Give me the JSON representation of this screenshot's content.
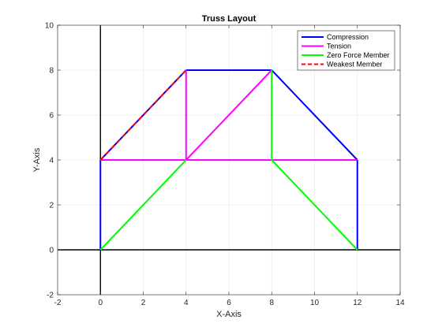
{
  "chart_data": {
    "type": "line",
    "title": "Truss Layout",
    "xlabel": "X-Axis",
    "ylabel": "Y-Axis",
    "xlim": [
      -2,
      14
    ],
    "ylim": [
      -2,
      10
    ],
    "xticks": [
      -2,
      0,
      2,
      4,
      6,
      8,
      10,
      12,
      14
    ],
    "yticks": [
      -2,
      0,
      2,
      4,
      6,
      8,
      10
    ],
    "grid": true,
    "legend_position": "top-right",
    "reference_lines": [
      {
        "orientation": "horizontal",
        "value": 0,
        "color": "#000000"
      },
      {
        "orientation": "vertical",
        "value": 0,
        "color": "#000000"
      }
    ],
    "series": [
      {
        "name": "Compression",
        "color": "#0000ff",
        "style": "solid",
        "segments": [
          [
            [
              0,
              0
            ],
            [
              0,
              4
            ]
          ],
          [
            [
              0,
              4
            ],
            [
              4,
              8
            ]
          ],
          [
            [
              4,
              8
            ],
            [
              8,
              8
            ]
          ],
          [
            [
              8,
              8
            ],
            [
              12,
              4
            ]
          ],
          [
            [
              12,
              4
            ],
            [
              12,
              0
            ]
          ]
        ]
      },
      {
        "name": "Tension",
        "color": "#ff00ff",
        "style": "solid",
        "segments": [
          [
            [
              0,
              4
            ],
            [
              12,
              4
            ]
          ],
          [
            [
              4,
              4
            ],
            [
              4,
              8
            ]
          ],
          [
            [
              4,
              4
            ],
            [
              8,
              8
            ]
          ]
        ]
      },
      {
        "name": "Zero Force Member",
        "color": "#00ff00",
        "style": "solid",
        "segments": [
          [
            [
              0,
              0
            ],
            [
              4,
              4
            ]
          ],
          [
            [
              8,
              4
            ],
            [
              8,
              8
            ]
          ],
          [
            [
              8,
              4
            ],
            [
              12,
              0
            ]
          ]
        ]
      },
      {
        "name": "Weakest Member",
        "color": "#ff0000",
        "style": "dashed",
        "segments": [
          [
            [
              0,
              4
            ],
            [
              4,
              8
            ]
          ]
        ]
      }
    ]
  }
}
